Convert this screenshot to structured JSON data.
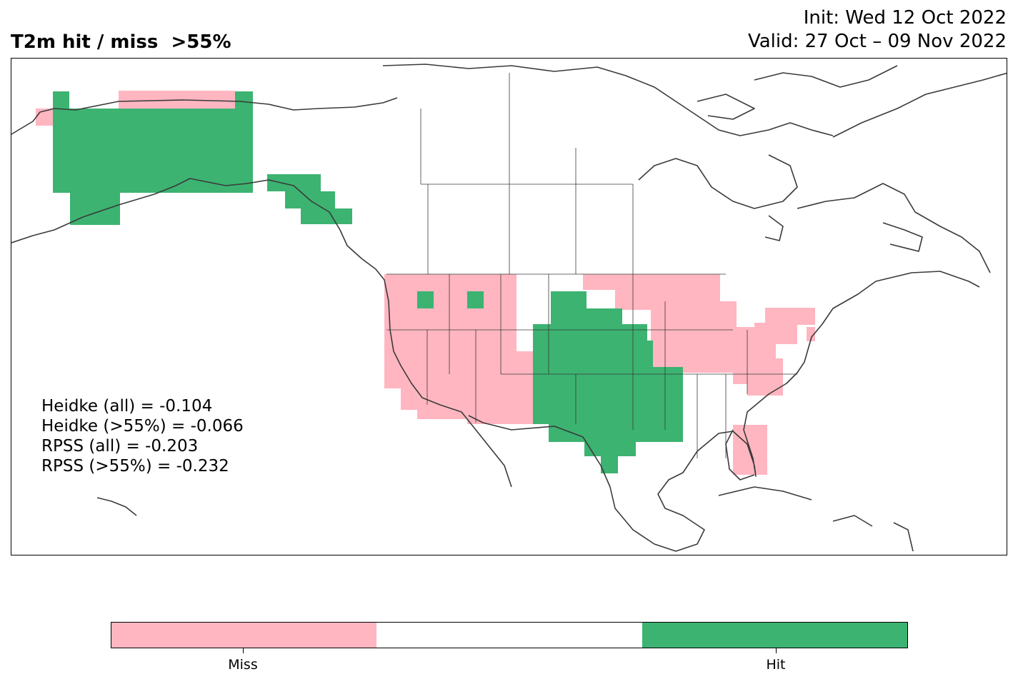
{
  "header": {
    "title": "T2m hit / miss  >55%",
    "init": "Init: Wed 12 Oct 2022",
    "valid": "Valid: 27 Oct – 09 Nov 2022"
  },
  "scores": [
    "Heidke (all) = -0.104",
    "Heidke (>55%) = -0.066",
    "RPSS (all) = -0.203",
    "RPSS (>55%) = -0.232"
  ],
  "colors": {
    "miss": "#ffb6c1",
    "neutral": "#ffffff",
    "hit": "#3cb371",
    "coast": "#3a3a3a"
  },
  "colorbar": {
    "labels": [
      "Miss",
      "Hit"
    ]
  }
}
